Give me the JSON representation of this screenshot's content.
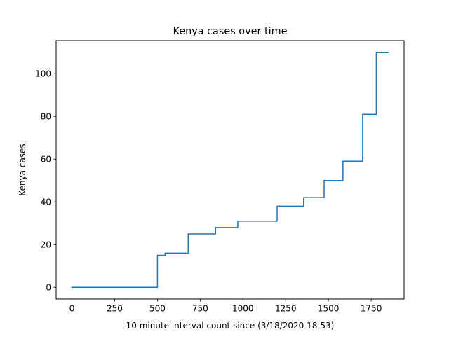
{
  "chart_data": {
    "type": "line",
    "drawstyle": "steps-post",
    "title": "Kenya cases over time",
    "xlabel": "10 minute interval count since (3/18/2020 18:53)",
    "ylabel": "Kenya cases",
    "xlim": [
      -92.5,
      1942.5
    ],
    "ylim": [
      -5.5,
      115.5
    ],
    "xticks": [
      0,
      250,
      500,
      750,
      1000,
      1250,
      1500,
      1750
    ],
    "yticks": [
      0,
      20,
      40,
      60,
      80,
      100
    ],
    "grid": false,
    "legend": "none",
    "colors": {
      "series": "#1f77b4",
      "axes": "#000000",
      "background": "#ffffff"
    },
    "series": [
      {
        "x": [
          0,
          500,
          545,
          680,
          840,
          970,
          1200,
          1355,
          1475,
          1585,
          1700,
          1780,
          1850
        ],
        "y": [
          0,
          15,
          16,
          25,
          28,
          31,
          38,
          42,
          50,
          59,
          81,
          110,
          110
        ]
      }
    ]
  }
}
